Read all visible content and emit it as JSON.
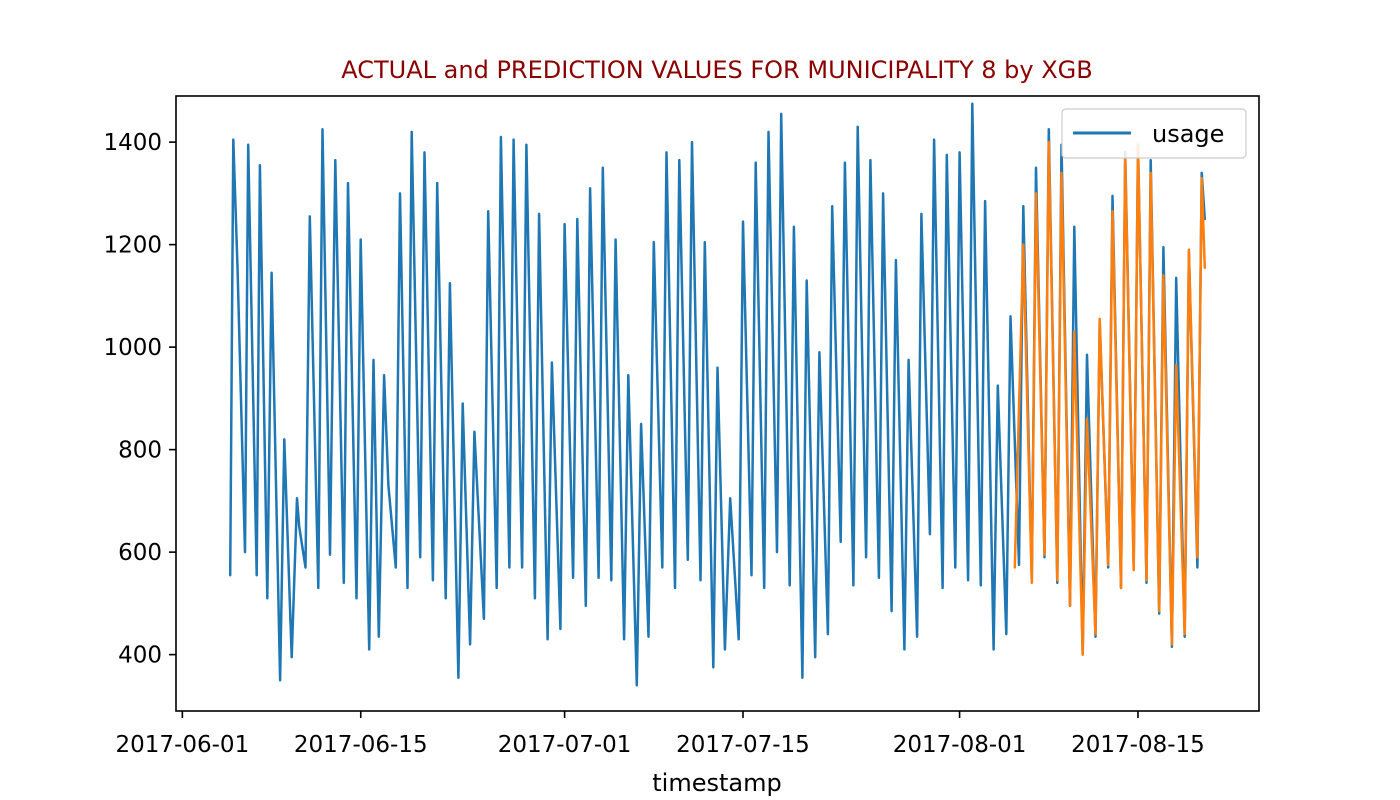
{
  "chart_data": {
    "type": "line",
    "title": "ACTUAL and PREDICTION VALUES FOR MUNICIPALITY 8 by XGB",
    "title_color": "#8b0000",
    "xlabel": "timestamp",
    "ylabel": "",
    "x_ticks": [
      "2017-06-01",
      "2017-06-15",
      "2017-07-01",
      "2017-07-15",
      "2017-08-01",
      "2017-08-15"
    ],
    "y_ticks": [
      400,
      600,
      800,
      1000,
      1200,
      1400
    ],
    "xlim": [
      "2017-05-31T12:00",
      "2017-08-24T12:00"
    ],
    "ylim": [
      290,
      1490
    ],
    "grid": false,
    "legend": {
      "location": "top-right",
      "entries": [
        "usage"
      ]
    },
    "series": [
      {
        "name": "usage",
        "color": "#1f77b4",
        "line_width": 2.5,
        "points": [
          [
            "2017-06-04T18:00",
            555
          ],
          [
            "2017-06-05T00:00",
            1405
          ],
          [
            "2017-06-05T08:00",
            1150
          ],
          [
            "2017-06-05T22:00",
            600
          ],
          [
            "2017-06-06T04:00",
            1395
          ],
          [
            "2017-06-06T20:00",
            555
          ],
          [
            "2017-06-07T02:00",
            1355
          ],
          [
            "2017-06-07T16:00",
            510
          ],
          [
            "2017-06-08T00:00",
            1145
          ],
          [
            "2017-06-08T16:00",
            350
          ],
          [
            "2017-06-09T00:00",
            820
          ],
          [
            "2017-06-09T14:00",
            395
          ],
          [
            "2017-06-10T00:00",
            705
          ],
          [
            "2017-06-10T04:00",
            650
          ],
          [
            "2017-06-10T16:00",
            570
          ],
          [
            "2017-06-11T00:00",
            1255
          ],
          [
            "2017-06-11T16:00",
            530
          ],
          [
            "2017-06-12T00:00",
            1425
          ],
          [
            "2017-06-12T14:00",
            595
          ],
          [
            "2017-06-13T00:00",
            1365
          ],
          [
            "2017-06-13T16:00",
            540
          ],
          [
            "2017-06-14T00:00",
            1320
          ],
          [
            "2017-06-14T16:00",
            510
          ],
          [
            "2017-06-15T00:00",
            1210
          ],
          [
            "2017-06-15T16:00",
            410
          ],
          [
            "2017-06-16T00:00",
            975
          ],
          [
            "2017-06-16T10:00",
            435
          ],
          [
            "2017-06-16T20:00",
            945
          ],
          [
            "2017-06-17T04:00",
            730
          ],
          [
            "2017-06-17T18:00",
            570
          ],
          [
            "2017-06-18T02:00",
            1300
          ],
          [
            "2017-06-18T16:00",
            530
          ],
          [
            "2017-06-19T00:00",
            1420
          ],
          [
            "2017-06-19T16:00",
            590
          ],
          [
            "2017-06-20T00:00",
            1380
          ],
          [
            "2017-06-20T16:00",
            545
          ],
          [
            "2017-06-21T00:00",
            1320
          ],
          [
            "2017-06-21T16:00",
            510
          ],
          [
            "2017-06-22T00:00",
            1125
          ],
          [
            "2017-06-22T16:00",
            355
          ],
          [
            "2017-06-23T00:00",
            890
          ],
          [
            "2017-06-23T14:00",
            420
          ],
          [
            "2017-06-23T22:00",
            835
          ],
          [
            "2017-06-24T16:00",
            470
          ],
          [
            "2017-06-25T00:00",
            1265
          ],
          [
            "2017-06-25T16:00",
            530
          ],
          [
            "2017-06-26T00:00",
            1410
          ],
          [
            "2017-06-26T16:00",
            570
          ],
          [
            "2017-06-27T00:00",
            1405
          ],
          [
            "2017-06-27T16:00",
            570
          ],
          [
            "2017-06-28T00:00",
            1395
          ],
          [
            "2017-06-28T16:00",
            510
          ],
          [
            "2017-06-29T00:00",
            1260
          ],
          [
            "2017-06-29T16:00",
            430
          ],
          [
            "2017-06-30T00:00",
            970
          ],
          [
            "2017-06-30T16:00",
            450
          ],
          [
            "2017-07-01T00:00",
            1240
          ],
          [
            "2017-07-01T16:00",
            550
          ],
          [
            "2017-07-02T00:00",
            1250
          ],
          [
            "2017-07-02T16:00",
            495
          ],
          [
            "2017-07-03T00:00",
            1310
          ],
          [
            "2017-07-03T16:00",
            550
          ],
          [
            "2017-07-04T00:00",
            1350
          ],
          [
            "2017-07-04T16:00",
            545
          ],
          [
            "2017-07-05T00:00",
            1210
          ],
          [
            "2017-07-05T16:00",
            430
          ],
          [
            "2017-07-06T00:00",
            945
          ],
          [
            "2017-07-06T16:00",
            340
          ],
          [
            "2017-07-07T00:00",
            850
          ],
          [
            "2017-07-07T14:00",
            435
          ],
          [
            "2017-07-08T00:00",
            1205
          ],
          [
            "2017-07-08T16:00",
            570
          ],
          [
            "2017-07-09T00:00",
            1380
          ],
          [
            "2017-07-09T16:00",
            530
          ],
          [
            "2017-07-10T00:00",
            1365
          ],
          [
            "2017-07-10T16:00",
            585
          ],
          [
            "2017-07-11T00:00",
            1400
          ],
          [
            "2017-07-11T16:00",
            545
          ],
          [
            "2017-07-12T00:00",
            1205
          ],
          [
            "2017-07-12T16:00",
            375
          ],
          [
            "2017-07-13T00:00",
            960
          ],
          [
            "2017-07-13T14:00",
            410
          ],
          [
            "2017-07-14T00:00",
            705
          ],
          [
            "2017-07-14T16:00",
            430
          ],
          [
            "2017-07-15T00:00",
            1245
          ],
          [
            "2017-07-15T16:00",
            555
          ],
          [
            "2017-07-16T00:00",
            1360
          ],
          [
            "2017-07-16T16:00",
            530
          ],
          [
            "2017-07-17T00:00",
            1420
          ],
          [
            "2017-07-17T16:00",
            600
          ],
          [
            "2017-07-18T00:00",
            1455
          ],
          [
            "2017-07-18T16:00",
            535
          ],
          [
            "2017-07-19T00:00",
            1235
          ],
          [
            "2017-07-19T16:00",
            355
          ],
          [
            "2017-07-20T00:00",
            1130
          ],
          [
            "2017-07-20T16:00",
            395
          ],
          [
            "2017-07-21T00:00",
            990
          ],
          [
            "2017-07-21T16:00",
            440
          ],
          [
            "2017-07-22T00:00",
            1275
          ],
          [
            "2017-07-22T16:00",
            620
          ],
          [
            "2017-07-23T00:00",
            1360
          ],
          [
            "2017-07-23T16:00",
            535
          ],
          [
            "2017-07-24T00:00",
            1430
          ],
          [
            "2017-07-24T16:00",
            590
          ],
          [
            "2017-07-25T00:00",
            1365
          ],
          [
            "2017-07-25T16:00",
            550
          ],
          [
            "2017-07-26T00:00",
            1300
          ],
          [
            "2017-07-26T16:00",
            485
          ],
          [
            "2017-07-27T00:00",
            1170
          ],
          [
            "2017-07-27T16:00",
            410
          ],
          [
            "2017-07-28T00:00",
            975
          ],
          [
            "2017-07-28T16:00",
            435
          ],
          [
            "2017-07-29T00:00",
            1260
          ],
          [
            "2017-07-29T16:00",
            635
          ],
          [
            "2017-07-30T00:00",
            1405
          ],
          [
            "2017-07-30T16:00",
            530
          ],
          [
            "2017-07-31T00:00",
            1375
          ],
          [
            "2017-07-31T16:00",
            570
          ],
          [
            "2017-08-01T00:00",
            1380
          ],
          [
            "2017-08-01T16:00",
            545
          ],
          [
            "2017-08-02T00:00",
            1475
          ],
          [
            "2017-08-02T16:00",
            535
          ],
          [
            "2017-08-03T00:00",
            1285
          ],
          [
            "2017-08-03T16:00",
            410
          ],
          [
            "2017-08-04T00:00",
            925
          ],
          [
            "2017-08-04T16:00",
            440
          ],
          [
            "2017-08-05T00:00",
            1060
          ],
          [
            "2017-08-05T16:00",
            575
          ],
          [
            "2017-08-06T00:00",
            1275
          ],
          [
            "2017-08-06T16:00",
            545
          ],
          [
            "2017-08-07T00:00",
            1350
          ],
          [
            "2017-08-07T16:00",
            590
          ],
          [
            "2017-08-08T00:00",
            1425
          ],
          [
            "2017-08-08T16:00",
            540
          ],
          [
            "2017-08-09T00:00",
            1395
          ],
          [
            "2017-08-09T16:00",
            495
          ],
          [
            "2017-08-10T00:00",
            1235
          ],
          [
            "2017-08-10T16:00",
            400
          ],
          [
            "2017-08-11T00:00",
            985
          ],
          [
            "2017-08-11T16:00",
            435
          ],
          [
            "2017-08-12T00:00",
            1050
          ],
          [
            "2017-08-12T16:00",
            570
          ],
          [
            "2017-08-13T00:00",
            1295
          ],
          [
            "2017-08-13T16:00",
            530
          ],
          [
            "2017-08-14T00:00",
            1380
          ],
          [
            "2017-08-14T16:00",
            575
          ],
          [
            "2017-08-15T00:00",
            1395
          ],
          [
            "2017-08-15T16:00",
            540
          ],
          [
            "2017-08-16T00:00",
            1365
          ],
          [
            "2017-08-16T16:00",
            480
          ],
          [
            "2017-08-17T00:00",
            1195
          ],
          [
            "2017-08-17T16:00",
            415
          ],
          [
            "2017-08-18T00:00",
            1135
          ],
          [
            "2017-08-18T16:00",
            435
          ],
          [
            "2017-08-19T00:00",
            1185
          ],
          [
            "2017-08-19T16:00",
            570
          ],
          [
            "2017-08-20T00:00",
            1340
          ],
          [
            "2017-08-20T06:00",
            1250
          ]
        ]
      },
      {
        "name": "",
        "color": "#ff7f0e",
        "line_width": 2.5,
        "points": [
          [
            "2017-08-05T08:00",
            570
          ],
          [
            "2017-08-06T00:00",
            1200
          ],
          [
            "2017-08-06T16:00",
            540
          ],
          [
            "2017-08-07T00:00",
            1300
          ],
          [
            "2017-08-07T16:00",
            595
          ],
          [
            "2017-08-08T00:00",
            1400
          ],
          [
            "2017-08-08T16:00",
            545
          ],
          [
            "2017-08-09T00:00",
            1340
          ],
          [
            "2017-08-09T16:00",
            495
          ],
          [
            "2017-08-10T00:00",
            1030
          ],
          [
            "2017-08-10T16:00",
            400
          ],
          [
            "2017-08-11T00:00",
            860
          ],
          [
            "2017-08-11T16:00",
            440
          ],
          [
            "2017-08-12T00:00",
            1055
          ],
          [
            "2017-08-12T16:00",
            575
          ],
          [
            "2017-08-13T00:00",
            1265
          ],
          [
            "2017-08-13T16:00",
            530
          ],
          [
            "2017-08-14T00:00",
            1370
          ],
          [
            "2017-08-14T16:00",
            565
          ],
          [
            "2017-08-15T00:00",
            1395
          ],
          [
            "2017-08-15T16:00",
            545
          ],
          [
            "2017-08-16T00:00",
            1340
          ],
          [
            "2017-08-16T16:00",
            485
          ],
          [
            "2017-08-17T00:00",
            1140
          ],
          [
            "2017-08-17T16:00",
            420
          ],
          [
            "2017-08-18T00:00",
            965
          ],
          [
            "2017-08-18T16:00",
            440
          ],
          [
            "2017-08-19T00:00",
            1190
          ],
          [
            "2017-08-19T16:00",
            590
          ],
          [
            "2017-08-20T00:00",
            1330
          ],
          [
            "2017-08-20T06:00",
            1155
          ]
        ]
      }
    ]
  }
}
